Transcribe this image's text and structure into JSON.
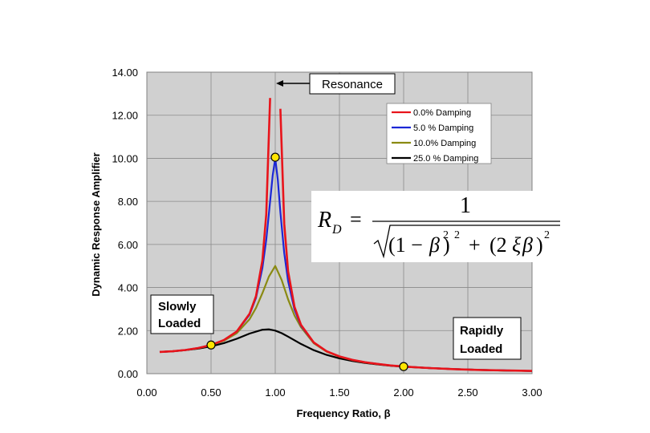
{
  "chart_data": {
    "type": "line",
    "xlabel": "Frequency Ratio, β",
    "ylabel": "Dynamic Response Amplifier",
    "xlim": [
      0,
      3
    ],
    "ylim": [
      0,
      14
    ],
    "x_ticks": [
      "0.00",
      "0.50",
      "1.00",
      "1.50",
      "2.00",
      "2.50",
      "3.00"
    ],
    "y_ticks": [
      "0.00",
      "2.00",
      "4.00",
      "6.00",
      "8.00",
      "10.00",
      "12.00",
      "14.00"
    ],
    "grid": true,
    "legend_position": "top-right",
    "series": [
      {
        "name": "0.0% Damping",
        "color": "#e8141b",
        "damping": 0.0,
        "segments": [
          {
            "x": [
              0.1,
              0.2,
              0.3,
              0.4,
              0.5,
              0.6,
              0.7,
              0.8,
              0.85,
              0.9,
              0.93,
              0.96
            ],
            "y": [
              1.01,
              1.04,
              1.1,
              1.19,
              1.33,
              1.56,
              1.96,
              2.78,
              3.6,
              5.26,
              7.4,
              12.8
            ]
          },
          {
            "x": [
              1.04,
              1.07,
              1.1,
              1.15,
              1.2,
              1.3,
              1.4,
              1.5,
              1.6,
              1.7,
              1.8,
              1.9,
              2.0,
              2.2,
              2.4,
              2.6,
              2.8,
              3.0
            ],
            "y": [
              12.3,
              6.96,
              4.76,
              3.1,
              2.27,
              1.45,
              1.04,
              0.8,
              0.64,
              0.53,
              0.45,
              0.38,
              0.33,
              0.26,
              0.21,
              0.17,
              0.15,
              0.125
            ]
          }
        ]
      },
      {
        "name": "5.0 % Damping",
        "color": "#1b27d6",
        "damping": 0.05,
        "x": [
          0.1,
          0.2,
          0.3,
          0.4,
          0.5,
          0.6,
          0.7,
          0.8,
          0.85,
          0.9,
          0.93,
          0.96,
          0.98,
          1.0,
          1.02,
          1.04,
          1.07,
          1.1,
          1.15,
          1.2,
          1.3,
          1.4,
          1.5,
          1.6,
          1.7,
          1.8,
          1.9,
          2.0,
          2.2,
          2.4,
          2.6,
          2.8,
          3.0
        ],
        "y": [
          1.01,
          1.04,
          1.1,
          1.19,
          1.33,
          1.56,
          1.95,
          2.74,
          3.52,
          4.91,
          6.21,
          8.0,
          9.2,
          10.0,
          9.0,
          7.5,
          5.6,
          4.3,
          2.97,
          2.23,
          1.44,
          1.04,
          0.8,
          0.64,
          0.53,
          0.45,
          0.38,
          0.33,
          0.26,
          0.21,
          0.17,
          0.15,
          0.125
        ]
      },
      {
        "name": "10.0% Damping",
        "color": "#8a8a12",
        "damping": 0.1,
        "x": [
          0.1,
          0.2,
          0.3,
          0.4,
          0.5,
          0.6,
          0.7,
          0.8,
          0.85,
          0.9,
          0.95,
          1.0,
          1.05,
          1.1,
          1.15,
          1.2,
          1.3,
          1.4,
          1.5,
          1.6,
          1.7,
          1.8,
          1.9,
          2.0,
          2.2,
          2.4,
          2.6,
          2.8,
          3.0
        ],
        "y": [
          1.01,
          1.04,
          1.1,
          1.18,
          1.32,
          1.53,
          1.88,
          2.53,
          3.05,
          3.74,
          4.5,
          5.0,
          4.35,
          3.45,
          2.7,
          2.16,
          1.41,
          1.02,
          0.79,
          0.63,
          0.52,
          0.44,
          0.38,
          0.33,
          0.26,
          0.21,
          0.17,
          0.145,
          0.124
        ]
      },
      {
        "name": "25.0 % Damping",
        "color": "#000000",
        "damping": 0.25,
        "x": [
          0.1,
          0.2,
          0.3,
          0.4,
          0.5,
          0.6,
          0.7,
          0.8,
          0.9,
          0.95,
          1.0,
          1.05,
          1.1,
          1.2,
          1.3,
          1.4,
          1.5,
          1.6,
          1.7,
          1.8,
          1.9,
          2.0,
          2.2,
          2.4,
          2.6,
          2.8,
          3.0
        ],
        "y": [
          1.01,
          1.04,
          1.09,
          1.16,
          1.27,
          1.42,
          1.62,
          1.86,
          2.04,
          2.06,
          2.0,
          1.88,
          1.72,
          1.38,
          1.09,
          0.87,
          0.71,
          0.59,
          0.5,
          0.43,
          0.37,
          0.32,
          0.26,
          0.21,
          0.17,
          0.145,
          0.124
        ]
      }
    ],
    "markers": [
      {
        "x": 1.0,
        "y": 10.05
      },
      {
        "x": 0.5,
        "y": 1.33
      },
      {
        "x": 2.0,
        "y": 0.33
      }
    ],
    "marker_color": "#ffe500",
    "annotations": {
      "resonance": "Resonance",
      "slowly": [
        "Slowly",
        "Loaded"
      ],
      "rapidly": [
        "Rapidly",
        "Loaded"
      ]
    },
    "formula": {
      "lhs": "R",
      "lhs_sub": "D",
      "eq": "=",
      "numerator": "1",
      "term1_open": "(1 −",
      "beta": "β",
      "term1_close": ")",
      "exp": "2",
      "plus": "+",
      "term2_open": "(2",
      "xi": "ξ",
      "term2_close": ")"
    }
  }
}
